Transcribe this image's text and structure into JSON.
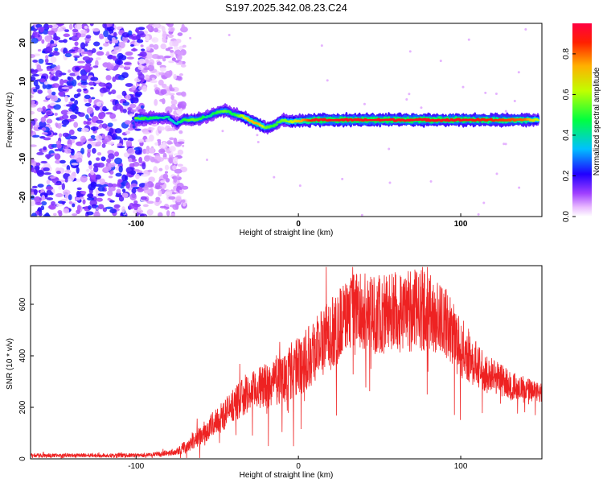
{
  "title": "S197.2025.342.08.23.C24",
  "colors": {
    "snr_line": "#ee2222",
    "ridge_core": "#ff2020"
  },
  "chart_data": [
    {
      "type": "heatmap",
      "xlabel": "Height of straight line (km)",
      "ylabel": "Frequency (Hz)",
      "xlim": [
        -165,
        150
      ],
      "ylim": [
        -25,
        25
      ],
      "x_ticks": [
        -100,
        0,
        100
      ],
      "y_ticks": [
        -20,
        -10,
        0,
        10,
        20
      ],
      "colorbar": {
        "label": "Normalized spectral amplitude",
        "range": [
          0,
          0.95
        ],
        "ticks": [
          0.0,
          0.2,
          0.4,
          0.6,
          0.8
        ],
        "colormap": "rainbow"
      },
      "ridge": {
        "x": [
          -100,
          -90,
          -80,
          -75,
          -70,
          -65,
          -60,
          -55,
          -50,
          -45,
          -40,
          -35,
          -30,
          -25,
          -20,
          -15,
          -10,
          -5,
          0,
          10,
          20,
          40,
          60,
          80,
          100,
          120,
          140,
          148
        ],
        "freq": [
          0.3,
          0.5,
          0.6,
          -1.0,
          0.2,
          0.0,
          0.5,
          1.0,
          2.0,
          2.5,
          1.5,
          1.0,
          0.0,
          -1.0,
          -2.0,
          -1.5,
          0.0,
          -0.5,
          -0.3,
          0.0,
          0.0,
          0.0,
          0.0,
          0.0,
          0.0,
          0.0,
          0.0,
          0.0
        ],
        "amplitude": [
          0.55,
          0.45,
          0.4,
          0.35,
          0.5,
          0.55,
          0.5,
          0.4,
          0.5,
          0.55,
          0.45,
          0.6,
          0.7,
          0.75,
          0.55,
          0.5,
          0.55,
          0.6,
          0.7,
          0.9,
          0.9,
          0.9,
          0.9,
          0.9,
          0.9,
          0.85,
          0.8,
          0.6
        ]
      },
      "noise_region_x": [
        -165,
        -80
      ],
      "noise_max_amplitude": 0.25
    },
    {
      "type": "line",
      "xlabel": "Height of straight line (km)",
      "ylabel": "SNR (10 * v/v)",
      "xlim": [
        -165,
        150
      ],
      "ylim": [
        0,
        750
      ],
      "x_ticks": [
        -100,
        0,
        100
      ],
      "y_ticks": [
        0,
        200,
        400,
        600
      ],
      "grid": false,
      "series": [
        {
          "x": [
            -165,
            -140,
            -120,
            -100,
            -90,
            -80,
            -75,
            -70,
            -65,
            -60,
            -55,
            -50,
            -45,
            -40,
            -35,
            -30,
            -25,
            -20,
            -15,
            -10,
            -5,
            0,
            5,
            10,
            15,
            20,
            25,
            30,
            35,
            40,
            45,
            50,
            55,
            60,
            65,
            70,
            75,
            80,
            85,
            90,
            95,
            100,
            105,
            110,
            115,
            120,
            125,
            130,
            135,
            140,
            145,
            150
          ],
          "y": [
            15,
            15,
            15,
            15,
            18,
            25,
            35,
            50,
            75,
            100,
            130,
            160,
            190,
            220,
            250,
            270,
            290,
            300,
            320,
            340,
            360,
            380,
            420,
            460,
            480,
            510,
            550,
            590,
            610,
            600,
            590,
            595,
            600,
            600,
            600,
            605,
            610,
            600,
            580,
            560,
            520,
            460,
            420,
            380,
            350,
            340,
            320,
            300,
            290,
            280,
            270,
            260
          ],
          "spread": [
            10,
            10,
            10,
            10,
            10,
            15,
            20,
            30,
            40,
            50,
            60,
            70,
            80,
            80,
            90,
            90,
            100,
            110,
            120,
            130,
            140,
            150,
            160,
            170,
            180,
            180,
            180,
            180,
            180,
            190,
            190,
            200,
            200,
            200,
            200,
            200,
            200,
            190,
            180,
            170,
            160,
            150,
            130,
            110,
            100,
            90,
            80,
            70,
            60,
            60,
            50,
            50
          ]
        }
      ]
    }
  ]
}
